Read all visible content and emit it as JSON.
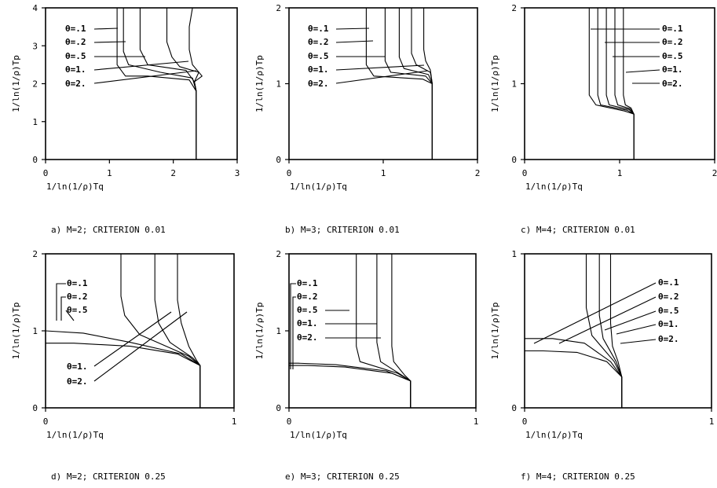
{
  "chart_data": [
    {
      "type": "line",
      "caption": "a) M=2; CRITERION 0.01",
      "xlabel": "1/ln(1/ρ)Tq",
      "ylabel": "1/ln(1/ρ)Tp",
      "xlim": [
        0,
        3
      ],
      "ylim": [
        0,
        4
      ],
      "xticks": [
        "0",
        "1",
        "2",
        "3"
      ],
      "yticks": [
        "0",
        "1",
        "2",
        "3",
        "4"
      ],
      "legend": [
        "θ=.1",
        "θ=.2",
        "θ=.5",
        "θ=1.",
        "θ=2."
      ],
      "series": [
        {
          "name": "θ=.1",
          "points": [
            [
              2.36,
              0
            ],
            [
              2.36,
              1.8
            ],
            [
              2.33,
              2.05
            ],
            [
              2.45,
              2.2
            ],
            [
              2.3,
              2.5
            ],
            [
              2.25,
              2.9
            ],
            [
              2.25,
              3.5
            ],
            [
              2.3,
              4
            ]
          ]
        },
        {
          "name": "θ=.2",
          "points": [
            [
              2.36,
              0
            ],
            [
              2.36,
              1.8
            ],
            [
              2.33,
              2.05
            ],
            [
              2.4,
              2.3
            ],
            [
              2.1,
              2.45
            ],
            [
              1.98,
              2.7
            ],
            [
              1.9,
              3.1
            ],
            [
              1.9,
              4
            ]
          ]
        },
        {
          "name": "θ=.5",
          "points": [
            [
              2.36,
              0
            ],
            [
              2.36,
              1.8
            ],
            [
              2.33,
              2.05
            ],
            [
              2.2,
              2.35
            ],
            [
              1.6,
              2.5
            ],
            [
              1.48,
              2.9
            ],
            [
              1.48,
              4
            ]
          ]
        },
        {
          "name": "θ=1.",
          "points": [
            [
              2.36,
              0
            ],
            [
              2.36,
              1.8
            ],
            [
              2.3,
              2.15
            ],
            [
              1.8,
              2.3
            ],
            [
              1.3,
              2.5
            ],
            [
              1.22,
              2.85
            ],
            [
              1.22,
              4
            ]
          ]
        },
        {
          "name": "θ=2.",
          "points": [
            [
              2.36,
              0
            ],
            [
              2.36,
              1.8
            ],
            [
              2.25,
              2.1
            ],
            [
              1.6,
              2.2
            ],
            [
              1.25,
              2.2
            ],
            [
              1.12,
              2.5
            ],
            [
              1.12,
              4
            ]
          ]
        }
      ]
    },
    {
      "type": "line",
      "caption": "b) M=3; CRITERION 0.01",
      "xlabel": "1/ln(1/ρ)Tq",
      "ylabel": "1/ln(1/ρ)Tp",
      "xlim": [
        0,
        2
      ],
      "ylim": [
        0,
        2
      ],
      "xticks": [
        "0",
        "1",
        "2"
      ],
      "yticks": [
        "0",
        "1",
        "2"
      ],
      "legend": [
        "θ=.1",
        "θ=.2",
        "θ=.5",
        "θ=1.",
        "θ=2."
      ],
      "series": [
        {
          "name": "θ=.1",
          "points": [
            [
              1.52,
              0
            ],
            [
              1.52,
              1.0
            ],
            [
              1.5,
              1.18
            ],
            [
              1.45,
              1.3
            ],
            [
              1.43,
              1.45
            ],
            [
              1.43,
              2
            ]
          ]
        },
        {
          "name": "θ=.2",
          "points": [
            [
              1.52,
              0
            ],
            [
              1.52,
              1.0
            ],
            [
              1.5,
              1.15
            ],
            [
              1.35,
              1.25
            ],
            [
              1.3,
              1.4
            ],
            [
              1.3,
              2
            ]
          ]
        },
        {
          "name": "θ=.5",
          "points": [
            [
              1.52,
              0
            ],
            [
              1.52,
              1.0
            ],
            [
              1.48,
              1.12
            ],
            [
              1.22,
              1.2
            ],
            [
              1.17,
              1.35
            ],
            [
              1.17,
              2
            ]
          ]
        },
        {
          "name": "θ=1.",
          "points": [
            [
              1.52,
              0
            ],
            [
              1.52,
              1.0
            ],
            [
              1.45,
              1.1
            ],
            [
              1.08,
              1.15
            ],
            [
              1.02,
              1.3
            ],
            [
              1.02,
              2
            ]
          ]
        },
        {
          "name": "θ=2.",
          "points": [
            [
              1.52,
              0
            ],
            [
              1.52,
              1.0
            ],
            [
              1.42,
              1.06
            ],
            [
              0.9,
              1.1
            ],
            [
              0.82,
              1.25
            ],
            [
              0.82,
              2
            ]
          ]
        }
      ]
    },
    {
      "type": "line",
      "caption": "c) M=4; CRITERION 0.01",
      "xlabel": "1/ln(1/ρ)Tq",
      "ylabel": "1/ln(1/ρ)Tp",
      "xlim": [
        0,
        2
      ],
      "ylim": [
        0,
        2
      ],
      "xticks": [
        "0",
        "1",
        "2"
      ],
      "yticks": [
        "0",
        "1",
        "2"
      ],
      "legend": [
        "θ=.1",
        "θ=.2",
        "θ=.5",
        "θ=1.",
        "θ=2."
      ],
      "series": [
        {
          "name": "θ=.1",
          "points": [
            [
              1.15,
              0
            ],
            [
              1.15,
              0.6
            ],
            [
              1.12,
              0.68
            ],
            [
              1.06,
              0.72
            ],
            [
              1.04,
              0.85
            ],
            [
              1.04,
              2
            ]
          ]
        },
        {
          "name": "θ=.2",
          "points": [
            [
              1.15,
              0
            ],
            [
              1.15,
              0.6
            ],
            [
              1.11,
              0.67
            ],
            [
              0.98,
              0.72
            ],
            [
              0.95,
              0.85
            ],
            [
              0.95,
              2
            ]
          ]
        },
        {
          "name": "θ=.5",
          "points": [
            [
              1.15,
              0
            ],
            [
              1.15,
              0.6
            ],
            [
              1.1,
              0.66
            ],
            [
              0.89,
              0.72
            ],
            [
              0.86,
              0.85
            ],
            [
              0.86,
              2
            ]
          ]
        },
        {
          "name": "θ=1.",
          "points": [
            [
              1.15,
              0
            ],
            [
              1.15,
              0.6
            ],
            [
              1.08,
              0.65
            ],
            [
              0.8,
              0.72
            ],
            [
              0.77,
              0.85
            ],
            [
              0.77,
              2
            ]
          ]
        },
        {
          "name": "θ=2.",
          "points": [
            [
              1.15,
              0
            ],
            [
              1.15,
              0.6
            ],
            [
              1.05,
              0.64
            ],
            [
              0.75,
              0.72
            ],
            [
              0.68,
              0.85
            ],
            [
              0.68,
              2
            ]
          ]
        }
      ]
    },
    {
      "type": "line",
      "caption": "d) M=2; CRITERION 0.25",
      "xlabel": "1/ln(1/ρ)Tq",
      "ylabel": "1/ln(1/ρ)Tp",
      "xlim": [
        0,
        1
      ],
      "ylim": [
        0,
        2
      ],
      "xticks": [
        "0",
        "1"
      ],
      "yticks": [
        "0",
        "1",
        "2"
      ],
      "legend": [
        "θ=.1",
        "θ=.2",
        "θ=.5",
        "θ=1.",
        "θ=2."
      ],
      "series": [
        {
          "name": "θ=.1",
          "points": [
            [
              0.82,
              0
            ],
            [
              0.82,
              0.55
            ],
            [
              0.8,
              0.62
            ],
            [
              0.76,
              0.8
            ],
            [
              0.72,
              1.1
            ],
            [
              0.7,
              1.4
            ],
            [
              0.7,
              2
            ]
          ]
        },
        {
          "name": "θ=.2",
          "points": [
            [
              0.82,
              0
            ],
            [
              0.82,
              0.55
            ],
            [
              0.78,
              0.65
            ],
            [
              0.66,
              0.85
            ],
            [
              0.6,
              1.1
            ],
            [
              0.58,
              1.4
            ],
            [
              0.58,
              2
            ]
          ]
        },
        {
          "name": "θ=.5",
          "points": [
            [
              0.82,
              0
            ],
            [
              0.82,
              0.55
            ],
            [
              0.76,
              0.67
            ],
            [
              0.5,
              0.95
            ],
            [
              0.42,
              1.2
            ],
            [
              0.4,
              1.45
            ],
            [
              0.4,
              2
            ]
          ]
        },
        {
          "name": "θ=1.",
          "points": [
            [
              0.82,
              0
            ],
            [
              0.82,
              0.55
            ],
            [
              0.72,
              0.7
            ],
            [
              0.45,
              0.85
            ],
            [
              0.2,
              0.97
            ],
            [
              0,
              1.0
            ]
          ]
        },
        {
          "name": "θ=2.",
          "points": [
            [
              0.82,
              0
            ],
            [
              0.82,
              0.55
            ],
            [
              0.7,
              0.7
            ],
            [
              0.45,
              0.8
            ],
            [
              0.15,
              0.84
            ],
            [
              0,
              0.84
            ]
          ]
        }
      ]
    },
    {
      "type": "line",
      "caption": "e) M=3; CRITERION 0.25",
      "xlabel": "1/ln(1/ρ)Tq",
      "ylabel": "1/ln(1/ρ)Tp",
      "xlim": [
        0,
        1
      ],
      "ylim": [
        0,
        2
      ],
      "xticks": [
        "0",
        "1"
      ],
      "yticks": [
        "0",
        "1",
        "2"
      ],
      "legend": [
        "θ=.1",
        "θ=.2",
        "θ=.5",
        "θ=1.",
        "θ=2."
      ],
      "series": [
        {
          "name": "θ=.1",
          "points": [
            [
              0.65,
              0
            ],
            [
              0.65,
              0.35
            ],
            [
              0.62,
              0.42
            ],
            [
              0.56,
              0.6
            ],
            [
              0.55,
              0.8
            ],
            [
              0.55,
              2
            ]
          ]
        },
        {
          "name": "θ=.2",
          "points": [
            [
              0.65,
              0
            ],
            [
              0.65,
              0.35
            ],
            [
              0.6,
              0.43
            ],
            [
              0.49,
              0.6
            ],
            [
              0.47,
              0.85
            ],
            [
              0.47,
              2
            ]
          ]
        },
        {
          "name": "θ=.5",
          "points": [
            [
              0.65,
              0
            ],
            [
              0.65,
              0.35
            ],
            [
              0.58,
              0.45
            ],
            [
              0.38,
              0.6
            ],
            [
              0.36,
              0.8
            ],
            [
              0.36,
              2
            ]
          ]
        },
        {
          "name": "θ=1.",
          "points": [
            [
              0.65,
              0
            ],
            [
              0.65,
              0.35
            ],
            [
              0.55,
              0.45
            ],
            [
              0.3,
              0.53
            ],
            [
              0.1,
              0.55
            ],
            [
              0,
              0.55
            ]
          ]
        },
        {
          "name": "θ=2.",
          "points": [
            [
              0.65,
              0
            ],
            [
              0.65,
              0.35
            ],
            [
              0.52,
              0.48
            ],
            [
              0.25,
              0.56
            ],
            [
              0.05,
              0.58
            ],
            [
              0,
              0.58
            ]
          ]
        }
      ]
    },
    {
      "type": "line",
      "caption": "f) M=4; CRITERION 0.25",
      "xlabel": "1/ln(1/ρ)Tq",
      "ylabel": "1/ln(1/ρ)Tp",
      "xlim": [
        0,
        1
      ],
      "ylim": [
        0,
        1
      ],
      "xticks": [
        "0",
        "1"
      ],
      "yticks": [
        "0",
        "1"
      ],
      "legend": [
        "θ=.1",
        "θ=.2",
        "θ=.5",
        "θ=1.",
        "θ=2."
      ],
      "series": [
        {
          "name": "θ=.1",
          "points": [
            [
              0.52,
              0
            ],
            [
              0.52,
              0.2
            ],
            [
              0.5,
              0.3
            ],
            [
              0.47,
              0.4
            ],
            [
              0.46,
              0.55
            ],
            [
              0.46,
              1
            ]
          ]
        },
        {
          "name": "θ=.2",
          "points": [
            [
              0.52,
              0
            ],
            [
              0.52,
              0.2
            ],
            [
              0.49,
              0.3
            ],
            [
              0.42,
              0.45
            ],
            [
              0.4,
              0.6
            ],
            [
              0.4,
              1
            ]
          ]
        },
        {
          "name": "θ=.5",
          "points": [
            [
              0.52,
              0
            ],
            [
              0.52,
              0.2
            ],
            [
              0.48,
              0.3
            ],
            [
              0.36,
              0.47
            ],
            [
              0.33,
              0.65
            ],
            [
              0.33,
              1
            ]
          ]
        },
        {
          "name": "θ=1.",
          "points": [
            [
              0.52,
              0
            ],
            [
              0.52,
              0.2
            ],
            [
              0.46,
              0.3
            ],
            [
              0.32,
              0.42
            ],
            [
              0.15,
              0.45
            ],
            [
              0,
              0.45
            ]
          ]
        },
        {
          "name": "θ=2.",
          "points": [
            [
              0.52,
              0
            ],
            [
              0.52,
              0.2
            ],
            [
              0.44,
              0.3
            ],
            [
              0.28,
              0.36
            ],
            [
              0.1,
              0.37
            ],
            [
              0,
              0.37
            ]
          ]
        }
      ]
    }
  ]
}
